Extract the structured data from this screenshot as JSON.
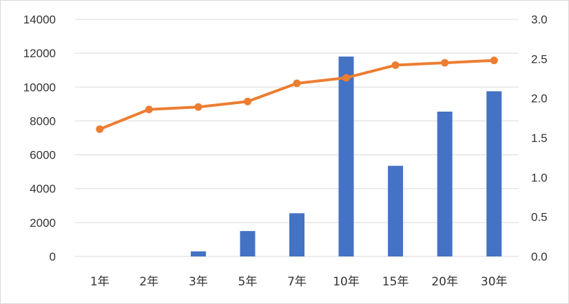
{
  "chart_data": {
    "type": "bar",
    "title": "",
    "xlabel": "",
    "ylabel": "",
    "y2label": "",
    "categories": [
      "1年",
      "2年",
      "3年",
      "5年",
      "7年",
      "10年",
      "15年",
      "20年",
      "30年"
    ],
    "series": [
      {
        "type": "bar",
        "axis": "left",
        "color": "#4472C4",
        "values": [
          0,
          0,
          300,
          1500,
          2550,
          11800,
          5350,
          8550,
          9750
        ]
      },
      {
        "type": "line",
        "axis": "right",
        "color": "#ED7D31",
        "values": [
          1.61,
          1.86,
          1.89,
          1.96,
          2.19,
          2.26,
          2.42,
          2.45,
          2.48
        ]
      }
    ],
    "ylim": [
      0,
      14000
    ],
    "y_ticks": [
      "0",
      "2000",
      "4000",
      "6000",
      "8000",
      "10000",
      "12000",
      "14000"
    ],
    "y2lim": [
      0,
      3.0
    ],
    "y2_ticks": [
      "0.0",
      "0.5",
      "1.0",
      "1.5",
      "2.0",
      "2.5",
      "3.0"
    ],
    "grid": true,
    "legend": "none",
    "gridline_color": "#d9d9d9"
  }
}
